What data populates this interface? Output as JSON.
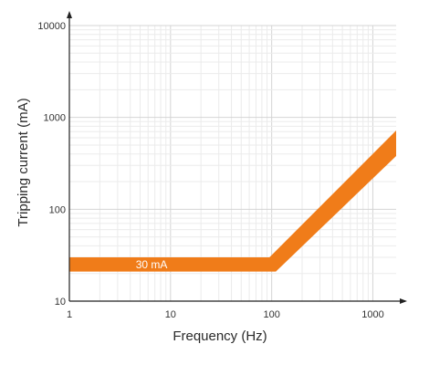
{
  "chart_data": {
    "type": "area",
    "xlabel": "Frequency (Hz)",
    "ylabel": "Tripping current (mA)",
    "xscale": "log",
    "yscale": "log",
    "xlim": [
      1,
      1700
    ],
    "ylim": [
      10,
      10000
    ],
    "x_ticks": [
      1,
      10,
      100,
      1000
    ],
    "x_tick_labels": [
      "1",
      "10",
      "100",
      "1000"
    ],
    "y_ticks": [
      10,
      100,
      1000,
      10000
    ],
    "y_tick_labels": [
      "10",
      "100",
      "1000",
      "10000"
    ],
    "grid": true,
    "band": {
      "label": "30 mA",
      "color": "#f07c19",
      "upper": [
        {
          "x": 1,
          "y": 30
        },
        {
          "x": 95,
          "y": 30
        },
        {
          "x": 1700,
          "y": 720
        }
      ],
      "lower": [
        {
          "x": 1,
          "y": 21
        },
        {
          "x": 110,
          "y": 21
        },
        {
          "x": 1700,
          "y": 380
        }
      ]
    }
  }
}
